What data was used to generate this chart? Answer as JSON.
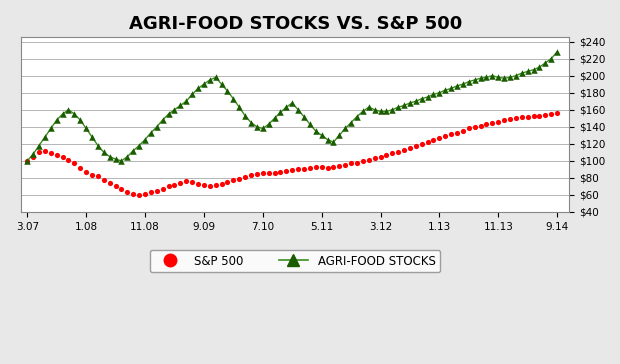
{
  "title": "AGRI-FOOD STOCKS VS. S&P 500",
  "title_fontsize": 13,
  "title_fontweight": "bold",
  "xtick_labels": [
    "3.07",
    "1.08",
    "11.08",
    "9.09",
    "7.10",
    "5.11",
    "3.12",
    "1.13",
    "11.13",
    "9.14"
  ],
  "ytick_labels": [
    "$40",
    "$60",
    "$80",
    "$100",
    "$120",
    "$140",
    "$160",
    "$180",
    "$200",
    "$220",
    "$240"
  ],
  "ytick_values": [
    40,
    60,
    80,
    100,
    120,
    140,
    160,
    180,
    200,
    220,
    240
  ],
  "ylim": [
    40,
    245
  ],
  "xlim": [
    -1,
    92
  ],
  "sp500_color": "#FF0000",
  "agri_color": "#1a5c00",
  "agri_line_color": "#3a8c20",
  "background_color": "#e8e8e8",
  "plot_bg_color": "#ffffff",
  "legend_sp500": "S&P 500",
  "legend_agri": "AGRI-FOOD STOCKS",
  "sp500_x": [
    0,
    1,
    2,
    3,
    4,
    5,
    6,
    7,
    8,
    9,
    10,
    11,
    12,
    13,
    14,
    15,
    16,
    17,
    18,
    19,
    20,
    21,
    22,
    23,
    24,
    25,
    26,
    27,
    28,
    29,
    30,
    31,
    32,
    33,
    34,
    35,
    36,
    37,
    38,
    39,
    40,
    41,
    42,
    43,
    44,
    45,
    46,
    47,
    48,
    49,
    50,
    51,
    52,
    53,
    54,
    55,
    56,
    57,
    58,
    59,
    60,
    61,
    62,
    63,
    64,
    65,
    66,
    67,
    68,
    69,
    70,
    71,
    72,
    73,
    74,
    75,
    76,
    77,
    78,
    79,
    80,
    81,
    82,
    83,
    84,
    85,
    86,
    87,
    88,
    89,
    90
  ],
  "sp500_y": [
    100,
    105,
    110,
    112,
    109,
    107,
    104,
    101,
    97,
    92,
    87,
    84,
    82,
    78,
    74,
    70,
    67,
    63,
    61,
    60,
    61,
    63,
    65,
    67,
    70,
    72,
    74,
    76,
    75,
    73,
    72,
    71,
    72,
    73,
    75,
    77,
    79,
    81,
    83,
    85,
    86,
    86,
    86,
    87,
    88,
    89,
    90,
    91,
    92,
    93,
    93,
    92,
    93,
    94,
    95,
    97,
    98,
    100,
    101,
    103,
    105,
    107,
    109,
    111,
    113,
    115,
    118,
    120,
    122,
    124,
    127,
    129,
    131,
    133,
    135,
    138,
    140,
    141,
    143,
    145,
    146,
    148,
    149,
    150,
    151,
    152,
    153,
    153,
    154,
    155,
    156
  ],
  "agri_x": [
    0,
    1,
    2,
    3,
    4,
    5,
    6,
    7,
    8,
    9,
    10,
    11,
    12,
    13,
    14,
    15,
    16,
    17,
    18,
    19,
    20,
    21,
    22,
    23,
    24,
    25,
    26,
    27,
    28,
    29,
    30,
    31,
    32,
    33,
    34,
    35,
    36,
    37,
    38,
    39,
    40,
    41,
    42,
    43,
    44,
    45,
    46,
    47,
    48,
    49,
    50,
    51,
    52,
    53,
    54,
    55,
    56,
    57,
    58,
    59,
    60,
    61,
    62,
    63,
    64,
    65,
    66,
    67,
    68,
    69,
    70,
    71,
    72,
    73,
    74,
    75,
    76,
    77,
    78,
    79,
    80,
    81,
    82,
    83,
    84,
    85,
    86,
    87,
    88,
    89,
    90
  ],
  "agri_y": [
    100,
    108,
    118,
    128,
    138,
    148,
    155,
    160,
    155,
    148,
    138,
    128,
    118,
    110,
    105,
    102,
    100,
    105,
    112,
    118,
    125,
    133,
    140,
    148,
    155,
    160,
    165,
    170,
    178,
    185,
    190,
    195,
    198,
    190,
    182,
    173,
    163,
    153,
    145,
    140,
    138,
    143,
    150,
    157,
    163,
    168,
    160,
    152,
    143,
    135,
    130,
    125,
    122,
    130,
    138,
    145,
    152,
    158,
    163,
    160,
    158,
    158,
    160,
    163,
    165,
    168,
    170,
    173,
    175,
    178,
    180,
    183,
    185,
    188,
    190,
    193,
    195,
    197,
    198,
    200,
    198,
    197,
    198,
    200,
    203,
    205,
    207,
    210,
    215,
    220,
    228
  ],
  "num_x_total": 91
}
